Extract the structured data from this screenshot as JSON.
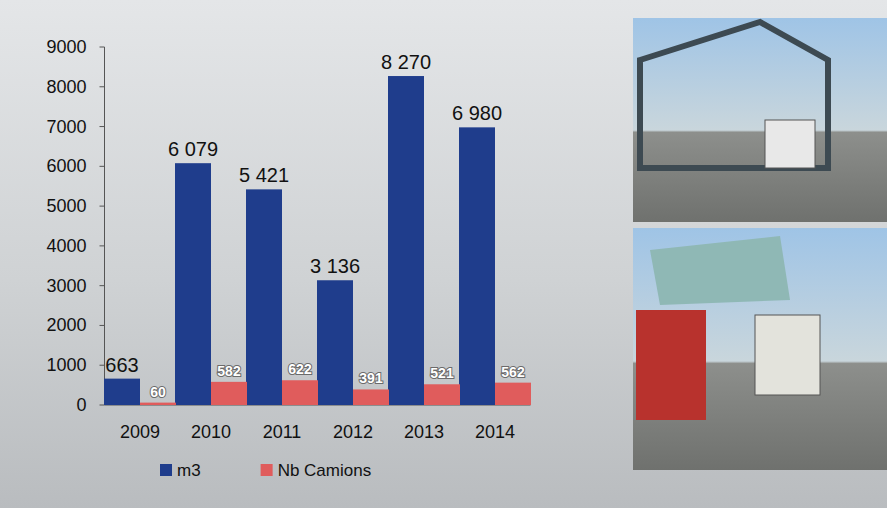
{
  "chart_data": {
    "type": "bar",
    "categories": [
      "2009",
      "2010",
      "2011",
      "2012",
      "2013",
      "2014"
    ],
    "series": [
      {
        "name": "m3",
        "color": "#1f3d8c",
        "values": [
          663,
          6079,
          5421,
          3136,
          8270,
          6980
        ],
        "value_labels": [
          "663",
          "6 079",
          "5 421",
          "3 136",
          "8 270",
          "6 980"
        ]
      },
      {
        "name": "Nb Camions",
        "color": "#e05c5c",
        "values": [
          60,
          582,
          622,
          391,
          521,
          562
        ]
      }
    ],
    "ylim": [
      0,
      9000
    ],
    "yticks": [
      0,
      1000,
      2000,
      3000,
      4000,
      5000,
      6000,
      7000,
      8000,
      9000
    ],
    "grid": false,
    "legend": "bottom",
    "data_labels": true
  }
}
